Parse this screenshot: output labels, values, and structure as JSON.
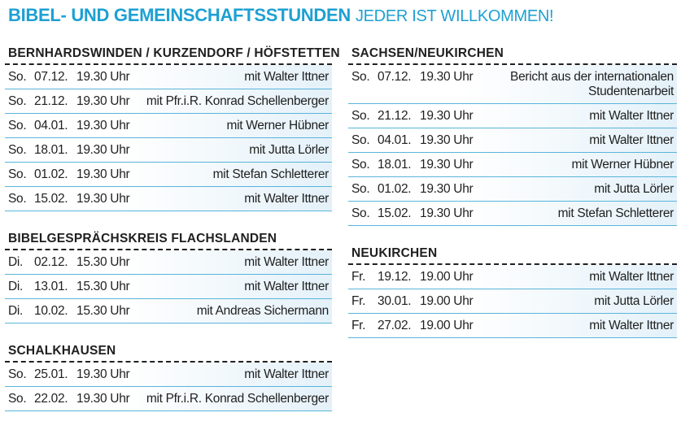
{
  "title": {
    "bold": "BIBEL- UND GEMEINSCHAFTSSTUNDEN",
    "light": "JEDER IST WILLKOMMEN!"
  },
  "sections": {
    "bernhardswinden": {
      "heading": "BERNHARDSWINDEN / KURZENDORF / HÖFSTETTEN",
      "rows": [
        {
          "day": "So.",
          "date": "07.12.",
          "time": "19.30 Uhr",
          "who": "mit Walter Ittner"
        },
        {
          "day": "So.",
          "date": "21.12.",
          "time": "19.30 Uhr",
          "who": "mit Pfr.i.R. Konrad Schellenberger"
        },
        {
          "day": "So.",
          "date": "04.01.",
          "time": "19.30 Uhr",
          "who": "mit Werner Hübner"
        },
        {
          "day": "So.",
          "date": "18.01.",
          "time": "19.30 Uhr",
          "who": "mit Jutta Lörler"
        },
        {
          "day": "So.",
          "date": "01.02.",
          "time": "19.30 Uhr",
          "who": "mit Stefan Schletterer"
        },
        {
          "day": "So.",
          "date": "15.02.",
          "time": "19.30 Uhr",
          "who": "mit Walter Ittner"
        }
      ]
    },
    "flachslanden": {
      "heading": "BIBELGESPRÄCHSKREIS FLACHSLANDEN",
      "rows": [
        {
          "day": "Di.",
          "date": "02.12.",
          "time": "15.30 Uhr",
          "who": "mit Walter Ittner"
        },
        {
          "day": "Di.",
          "date": "13.01.",
          "time": "15.30 Uhr",
          "who": "mit Walter Ittner"
        },
        {
          "day": "Di.",
          "date": "10.02.",
          "time": "15.30 Uhr",
          "who": "mit Andreas Sichermann"
        }
      ]
    },
    "schalkhausen": {
      "heading": "SCHALKHAUSEN",
      "rows": [
        {
          "day": "So.",
          "date": "25.01.",
          "time": "19.30 Uhr",
          "who": "mit Walter Ittner"
        },
        {
          "day": "So.",
          "date": "22.02.",
          "time": "19.30 Uhr",
          "who": "mit Pfr.i.R. Konrad Schellenberger"
        }
      ]
    },
    "sachsen": {
      "heading": "SACHSEN/NEUKIRCHEN",
      "rows": [
        {
          "day": "So.",
          "date": "07.12.",
          "time": "19.30 Uhr",
          "who": "Bericht aus der internationalen Studentenarbeit"
        },
        {
          "day": "So.",
          "date": "21.12.",
          "time": "19.30 Uhr",
          "who": "mit Walter Ittner"
        },
        {
          "day": "So.",
          "date": "04.01.",
          "time": "19.30 Uhr",
          "who": "mit Walter Ittner"
        },
        {
          "day": "So.",
          "date": "18.01.",
          "time": "19.30 Uhr",
          "who": "mit Werner Hübner"
        },
        {
          "day": "So.",
          "date": "01.02.",
          "time": "19.30 Uhr",
          "who": "mit Jutta Lörler"
        },
        {
          "day": "So.",
          "date": "15.02.",
          "time": "19.30 Uhr",
          "who": "mit Stefan Schletterer"
        }
      ]
    },
    "neukirchen": {
      "heading": "NEUKIRCHEN",
      "rows": [
        {
          "day": "Fr.",
          "date": "19.12.",
          "time": "19.00 Uhr",
          "who": "mit Walter Ittner"
        },
        {
          "day": "Fr.",
          "date": "30.01.",
          "time": "19.00 Uhr",
          "who": "mit Jutta Lörler"
        },
        {
          "day": "Fr.",
          "date": "27.02.",
          "time": "19.00 Uhr",
          "who": "mit Walter Ittner"
        }
      ]
    }
  }
}
